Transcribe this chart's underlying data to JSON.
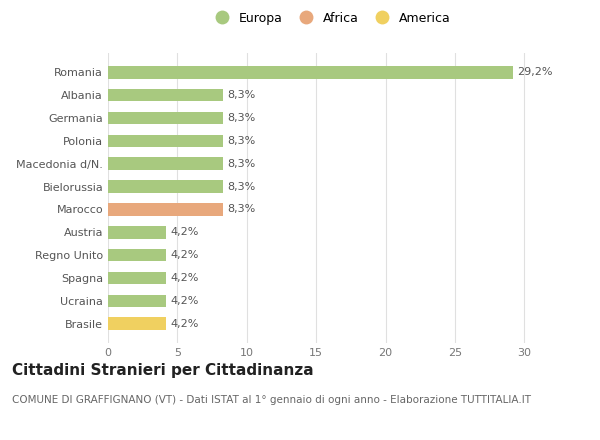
{
  "countries": [
    "Romania",
    "Albania",
    "Germania",
    "Polonia",
    "Macedonia d/N.",
    "Bielorussia",
    "Marocco",
    "Austria",
    "Regno Unito",
    "Spagna",
    "Ucraina",
    "Brasile"
  ],
  "values": [
    29.2,
    8.3,
    8.3,
    8.3,
    8.3,
    8.3,
    8.3,
    4.2,
    4.2,
    4.2,
    4.2,
    4.2
  ],
  "labels": [
    "29,2%",
    "8,3%",
    "8,3%",
    "8,3%",
    "8,3%",
    "8,3%",
    "8,3%",
    "4,2%",
    "4,2%",
    "4,2%",
    "4,2%",
    "4,2%"
  ],
  "colors": [
    "#a8c97f",
    "#a8c97f",
    "#a8c97f",
    "#a8c97f",
    "#a8c97f",
    "#a8c97f",
    "#e8a87c",
    "#a8c97f",
    "#a8c97f",
    "#a8c97f",
    "#a8c97f",
    "#f0d060"
  ],
  "legend": [
    {
      "label": "Europa",
      "color": "#a8c97f"
    },
    {
      "label": "Africa",
      "color": "#e8a87c"
    },
    {
      "label": "America",
      "color": "#f0d060"
    }
  ],
  "title": "Cittadini Stranieri per Cittadinanza",
  "subtitle": "COMUNE DI GRAFFIGNANO (VT) - Dati ISTAT al 1° gennaio di ogni anno - Elaborazione TUTTITALIA.IT",
  "xlim": [
    0,
    32
  ],
  "xticks": [
    0,
    5,
    10,
    15,
    20,
    25,
    30
  ],
  "background_color": "#ffffff",
  "grid_color": "#e0e0e0",
  "bar_height": 0.55,
  "title_fontsize": 11,
  "subtitle_fontsize": 7.5,
  "label_fontsize": 8,
  "tick_fontsize": 8,
  "legend_fontsize": 9
}
